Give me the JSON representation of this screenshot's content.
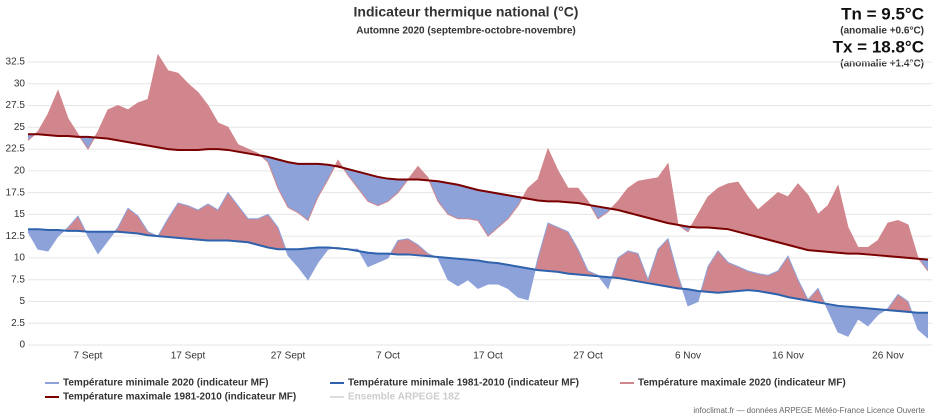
{
  "chart_data": {
    "type": "line",
    "title": "Indicateur thermique national (°C)",
    "subtitle": "Automne 2020 (septembre-octobre-novembre)",
    "summary": [
      "Tn = 9.5°C",
      "(anomalie +0.6°C)",
      "Tx = 18.8°C",
      "(anomalie +1.4°C)"
    ],
    "categories": [
      null,
      null,
      null,
      null,
      null,
      null,
      "7 Sept",
      null,
      null,
      null,
      null,
      null,
      null,
      null,
      null,
      null,
      "17 Sept",
      null,
      null,
      null,
      null,
      null,
      null,
      null,
      null,
      null,
      "27 Sept",
      null,
      null,
      null,
      null,
      null,
      null,
      null,
      null,
      null,
      "7 Oct",
      null,
      null,
      null,
      null,
      null,
      null,
      null,
      null,
      null,
      "17 Oct",
      null,
      null,
      null,
      null,
      null,
      null,
      null,
      null,
      null,
      "27 Oct",
      null,
      null,
      null,
      null,
      null,
      null,
      null,
      null,
      null,
      "6 Nov",
      null,
      null,
      null,
      null,
      null,
      null,
      null,
      null,
      null,
      "16 Nov",
      null,
      null,
      null,
      null,
      null,
      null,
      null,
      null,
      null,
      "26 Nov",
      null,
      null,
      null,
      null
    ],
    "series": [
      {
        "name": "Température minimale 2020 (indicateur MF)",
        "color": "#8ea2da",
        "kind": "anomaly",
        "ref": 1,
        "values": [
          13,
          11,
          10.8,
          12.5,
          13.5,
          14.8,
          12.5,
          10.5,
          12,
          13.5,
          15.7,
          14.8,
          13,
          12.5,
          14.5,
          16.3,
          16,
          15.5,
          16.2,
          15.5,
          17.5,
          16,
          14.5,
          14.5,
          15,
          13.5,
          10.3,
          9,
          7.5,
          9.5,
          11,
          11.2,
          11,
          11,
          9,
          9.5,
          10,
          12,
          12.2,
          11.5,
          10.5,
          10,
          7.5,
          6.8,
          7.5,
          6.5,
          7,
          7,
          6.5,
          5.5,
          5.2,
          10,
          14,
          13.5,
          13,
          11,
          8.5,
          8,
          6.5,
          10,
          10.8,
          10.5,
          7.5,
          11,
          12.2,
          8,
          4.5,
          5,
          9,
          10.8,
          9.5,
          9,
          8.5,
          8.2,
          8,
          8.5,
          10.2,
          7.5,
          5.2,
          6.5,
          4,
          1.5,
          1,
          3,
          2.2,
          3.5,
          4.2,
          5.8,
          5,
          1.8,
          0.8
        ]
      },
      {
        "name": "Température minimale 1981-2010 (indicateur MF)",
        "color": "#2f62ad",
        "kind": "normal",
        "values": [
          13.3,
          13.3,
          13.2,
          13.2,
          13.1,
          13.1,
          13,
          13,
          13,
          13,
          12.9,
          12.8,
          12.6,
          12.5,
          12.4,
          12.3,
          12.2,
          12.1,
          12,
          12,
          12,
          11.9,
          11.8,
          11.5,
          11.2,
          11,
          11,
          11,
          11.1,
          11.2,
          11.2,
          11.1,
          11,
          10.8,
          10.6,
          10.5,
          10.5,
          10.4,
          10.4,
          10.3,
          10.2,
          10.1,
          10,
          9.9,
          9.8,
          9.7,
          9.5,
          9.4,
          9.2,
          9,
          8.8,
          8.6,
          8.5,
          8.4,
          8.2,
          8.1,
          8,
          7.9,
          7.8,
          7.7,
          7.5,
          7.3,
          7.1,
          6.9,
          6.7,
          6.5,
          6.4,
          6.2,
          6.1,
          6,
          6.1,
          6.2,
          6.3,
          6.2,
          6,
          5.8,
          5.5,
          5.3,
          5.1,
          4.9,
          4.7,
          4.5,
          4.4,
          4.3,
          4.2,
          4.1,
          4,
          3.9,
          3.8,
          3.7,
          3.7
        ]
      },
      {
        "name": "Température maximale 2020 (indicateur MF)",
        "color": "#d0868c",
        "kind": "anomaly",
        "ref": 3,
        "values": [
          23.5,
          24.5,
          26.5,
          29.2,
          26,
          24.2,
          22.5,
          24.5,
          27,
          27.5,
          27,
          27.8,
          28.2,
          33.3,
          31.5,
          31.2,
          30,
          29,
          27.5,
          25.5,
          25,
          23,
          22.5,
          22,
          21,
          18,
          15.8,
          15.2,
          14.3,
          17,
          19,
          21.2,
          19.5,
          18,
          16.5,
          16,
          16.5,
          17.5,
          19,
          20.5,
          19.2,
          16.5,
          15,
          14.5,
          14.5,
          14.3,
          12.5,
          13.5,
          14.5,
          16,
          18,
          19,
          22.5,
          20,
          18,
          18,
          16.5,
          14.5,
          15.3,
          16.5,
          18,
          18.8,
          19,
          19.2,
          20.8,
          13.8,
          13,
          15,
          17,
          18,
          18.5,
          18.7,
          17,
          15.5,
          16.5,
          17.5,
          17,
          18.5,
          17.2,
          15,
          16,
          18.3,
          13.5,
          11.2,
          11.2,
          12,
          14,
          14.3,
          13.8,
          10,
          8.5
        ]
      },
      {
        "name": "Température maximale 1981-2010 (indicateur MF)",
        "color": "#7a0000",
        "kind": "normal",
        "values": [
          24.2,
          24.2,
          24.1,
          24,
          24,
          23.9,
          23.9,
          23.8,
          23.7,
          23.5,
          23.3,
          23.1,
          22.9,
          22.7,
          22.5,
          22.4,
          22.4,
          22.4,
          22.5,
          22.5,
          22.4,
          22.2,
          22,
          21.8,
          21.6,
          21.3,
          21,
          20.8,
          20.8,
          20.8,
          20.7,
          20.5,
          20.2,
          19.9,
          19.6,
          19.3,
          19.1,
          19,
          19,
          19,
          18.9,
          18.8,
          18.6,
          18.4,
          18.1,
          17.8,
          17.6,
          17.4,
          17.2,
          17,
          16.8,
          16.6,
          16.5,
          16.5,
          16.4,
          16.3,
          16.1,
          15.9,
          15.7,
          15.5,
          15.2,
          14.9,
          14.6,
          14.3,
          14,
          13.8,
          13.6,
          13.5,
          13.5,
          13.4,
          13.3,
          13,
          12.7,
          12.4,
          12.1,
          11.8,
          11.5,
          11.2,
          10.9,
          10.8,
          10.7,
          10.6,
          10.5,
          10.5,
          10.4,
          10.3,
          10.2,
          10.1,
          10,
          9.9,
          9.8
        ]
      }
    ],
    "inactive_legend": "Ensemble ARPEGE 18Z",
    "ylim": [
      0,
      32.5
    ],
    "yticks": [
      0,
      2.5,
      5,
      7.5,
      10,
      12.5,
      15,
      17.5,
      20,
      22.5,
      25,
      27.5,
      30,
      32.5
    ],
    "grid": true,
    "credit": "infoclimat.fr — données ARPEGE Météo-France Licence Ouverte"
  }
}
